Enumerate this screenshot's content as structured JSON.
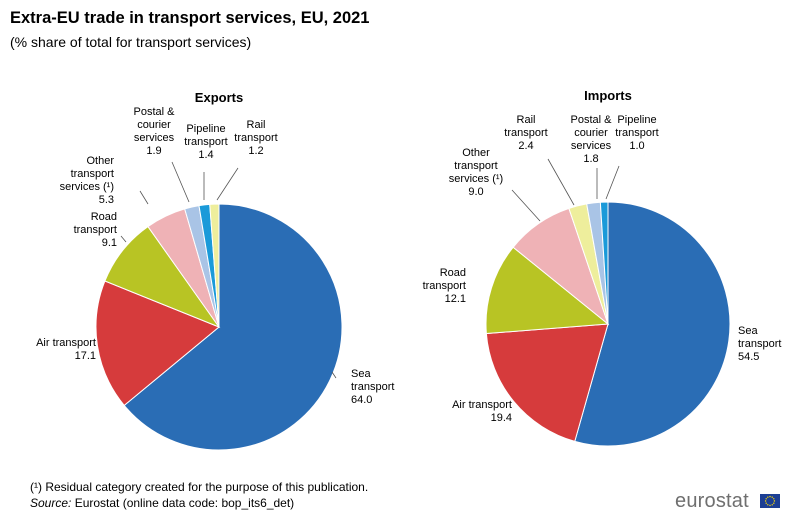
{
  "header": {
    "title": "Extra-EU trade in transport services, EU, 2021",
    "subtitle": "(% share of total for transport services)"
  },
  "footer": {
    "footnote": "(¹) Residual category created for the purpose of this publication.",
    "source_label": "Source:",
    "source_text": " Eurostat (online data code: bop_its6_det)",
    "logo_text": "eurostat"
  },
  "chart_data": [
    {
      "type": "pie",
      "title": "Exports",
      "slices": [
        {
          "name": "Sea transport",
          "label_lines": [
            "Sea",
            "transport"
          ],
          "value_text": "64.0",
          "value": 64.0,
          "color": "#2a6db5"
        },
        {
          "name": "Air transport",
          "label_lines": [
            "Air transport"
          ],
          "value_text": "17.1",
          "value": 17.1,
          "color": "#d63b3c"
        },
        {
          "name": "Road transport",
          "label_lines": [
            "Road",
            "transport"
          ],
          "value_text": "9.1",
          "value": 9.1,
          "color": "#b8c424"
        },
        {
          "name": "Other transport services (¹)",
          "label_lines": [
            "Other",
            "transport",
            "services (¹)"
          ],
          "value_text": "5.3",
          "value": 5.3,
          "color": "#efb2b6"
        },
        {
          "name": "Postal & courier services",
          "label_lines": [
            "Postal &",
            "courier",
            "services"
          ],
          "value_text": "1.9",
          "value": 1.9,
          "color": "#a9c4e6"
        },
        {
          "name": "Pipeline transport",
          "label_lines": [
            "Pipeline",
            "transport"
          ],
          "value_text": "1.4",
          "value": 1.4,
          "color": "#1a9ad9"
        },
        {
          "name": "Rail transport",
          "label_lines": [
            "Rail",
            "transport"
          ],
          "value_text": "1.2",
          "value": 1.2,
          "color": "#eeee9c"
        }
      ]
    },
    {
      "type": "pie",
      "title": "Imports",
      "slices": [
        {
          "name": "Sea transport",
          "label_lines": [
            "Sea",
            "transport"
          ],
          "value_text": "54.5",
          "value": 54.5,
          "color": "#2a6db5"
        },
        {
          "name": "Air transport",
          "label_lines": [
            "Air transport"
          ],
          "value_text": "19.4",
          "value": 19.4,
          "color": "#d63b3c"
        },
        {
          "name": "Road transport",
          "label_lines": [
            "Road",
            "transport"
          ],
          "value_text": "12.1",
          "value": 12.1,
          "color": "#b8c424"
        },
        {
          "name": "Other transport services (¹)",
          "label_lines": [
            "Other",
            "transport",
            "services (¹)"
          ],
          "value_text": "9.0",
          "value": 9.0,
          "color": "#efb2b6"
        },
        {
          "name": "Rail transport",
          "label_lines": [
            "Rail",
            "transport"
          ],
          "value_text": "2.4",
          "value": 2.4,
          "color": "#eeee9c"
        },
        {
          "name": "Postal & courier services",
          "label_lines": [
            "Postal &",
            "courier",
            "services"
          ],
          "value_text": "1.8",
          "value": 1.8,
          "color": "#a9c4e6"
        },
        {
          "name": "Pipeline transport",
          "label_lines": [
            "Pipeline",
            "transport"
          ],
          "value_text": "1.0",
          "value": 1.0,
          "color": "#1a9ad9"
        }
      ]
    }
  ]
}
